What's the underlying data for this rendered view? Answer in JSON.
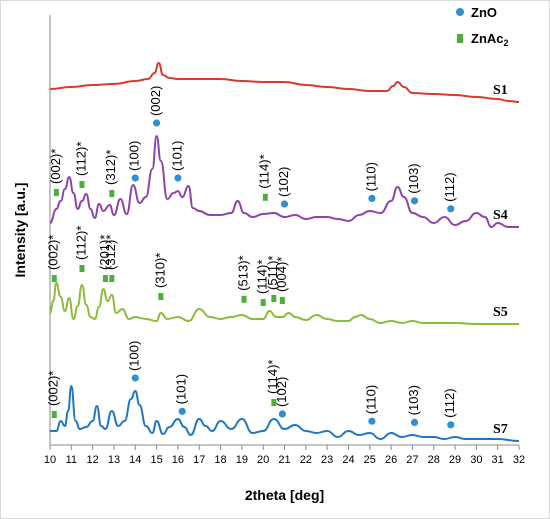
{
  "chart_data": {
    "type": "line",
    "title": "",
    "xlabel": "2theta [deg]",
    "ylabel": "Intensity [a.u.]",
    "xlim": [
      10,
      32
    ],
    "xticks": [
      "10",
      "11",
      "12",
      "13",
      "14",
      "15",
      "16",
      "17",
      "18",
      "19",
      "20",
      "21",
      "22",
      "23",
      "24",
      "25",
      "26",
      "27",
      "28",
      "29",
      "30",
      "31",
      "32"
    ],
    "grid": false,
    "legend": {
      "position": "top-right",
      "entries": [
        {
          "label": "ZnO",
          "marker": "circle",
          "color": "#2f8fd0"
        },
        {
          "label": "ZnAc",
          "subscript": "2",
          "marker": "square",
          "color": "#4caf3a"
        }
      ]
    },
    "series": [
      {
        "name": "S1",
        "color": "#d93a2e",
        "x": [
          10,
          11,
          12,
          13,
          14,
          14.6,
          14.9,
          15.1,
          15.3,
          15.6,
          16,
          17,
          18,
          19,
          20,
          21,
          22,
          23,
          24,
          25,
          25.8,
          26.1,
          26.3,
          26.6,
          27,
          28,
          29,
          30,
          31,
          31.5,
          32
        ],
        "y": [
          88,
          86,
          84,
          83,
          80,
          78,
          72,
          62,
          74,
          77,
          78,
          78,
          78,
          80,
          81,
          81,
          84,
          86,
          88,
          90,
          90,
          85,
          81,
          86,
          92,
          93,
          94,
          96,
          98,
          100,
          101
        ]
      },
      {
        "name": "S4",
        "color": "#8e44a8",
        "x": [
          10,
          10.3,
          10.5,
          10.7,
          10.9,
          11.1,
          11.3,
          11.5,
          11.7,
          11.9,
          12.1,
          12.3,
          12.5,
          12.8,
          13,
          13.3,
          13.6,
          13.9,
          14.2,
          14.5,
          14.8,
          15,
          15.2,
          15.5,
          15.8,
          16,
          16.2,
          16.5,
          16.7,
          17,
          17.5,
          18,
          18.5,
          18.8,
          19.1,
          19.5,
          20,
          20.5,
          21,
          21.5,
          22,
          22.5,
          23,
          23.5,
          24,
          24.5,
          25,
          25.5,
          26,
          26.3,
          26.6,
          27,
          27.5,
          28,
          28.5,
          29,
          29.5,
          30,
          30.4,
          30.7,
          31,
          31.5,
          32
        ],
        "y": [
          222,
          208,
          200,
          188,
          176,
          192,
          208,
          200,
          193,
          208,
          217,
          203,
          210,
          204,
          214,
          198,
          213,
          184,
          202,
          196,
          168,
          135,
          160,
          198,
          192,
          190,
          196,
          185,
          207,
          210,
          214,
          214,
          212,
          200,
          212,
          216,
          213,
          212,
          216,
          214,
          218,
          216,
          216,
          218,
          220,
          214,
          210,
          212,
          200,
          186,
          196,
          212,
          216,
          222,
          216,
          224,
          220,
          212,
          216,
          226,
          222,
          226,
          226
        ]
      },
      {
        "name": "S5",
        "color": "#8dbb3a",
        "x": [
          10,
          10.15,
          10.3,
          10.5,
          10.7,
          10.9,
          11.1,
          11.3,
          11.5,
          11.7,
          11.9,
          12.1,
          12.3,
          12.5,
          12.7,
          12.9,
          13.1,
          13.4,
          13.7,
          14,
          14.5,
          15,
          15.2,
          15.5,
          16,
          16.5,
          17,
          17.5,
          18,
          18.5,
          19,
          19.5,
          20,
          20.3,
          20.6,
          20.9,
          21.2,
          21.5,
          22,
          22.5,
          23,
          23.5,
          24,
          24.3,
          24.6,
          25,
          25.5,
          26,
          26.5,
          27,
          27.5,
          28,
          29,
          30,
          31,
          32
        ],
        "y": [
          312,
          300,
          282,
          296,
          310,
          297,
          318,
          305,
          284,
          304,
          316,
          318,
          306,
          288,
          300,
          294,
          312,
          308,
          318,
          316,
          318,
          320,
          312,
          318,
          316,
          320,
          308,
          316,
          318,
          316,
          314,
          318,
          318,
          310,
          316,
          316,
          312,
          316,
          319,
          314,
          318,
          320,
          320,
          316,
          314,
          318,
          322,
          320,
          322,
          320,
          322,
          322,
          322,
          323,
          323,
          323
        ]
      },
      {
        "name": "S7",
        "color": "#1f77c4",
        "x": [
          10,
          10.3,
          10.5,
          10.7,
          10.85,
          11,
          11.2,
          11.4,
          11.7,
          12,
          12.2,
          12.4,
          12.6,
          12.9,
          13.2,
          13.5,
          13.8,
          14,
          14.2,
          14.5,
          14.8,
          15,
          15.3,
          15.6,
          16,
          16.3,
          16.6,
          17,
          17.3,
          17.6,
          18,
          18.5,
          19,
          19.5,
          20,
          20.5,
          21,
          21.5,
          22,
          22.5,
          23,
          23.5,
          24,
          24.5,
          25,
          25.5,
          26,
          26.5,
          27,
          27.5,
          28,
          28.5,
          29,
          29.5,
          30,
          31,
          32
        ],
        "y": [
          430,
          430,
          420,
          425,
          410,
          385,
          420,
          428,
          426,
          420,
          405,
          425,
          428,
          410,
          425,
          420,
          398,
          390,
          404,
          425,
          432,
          420,
          433,
          426,
          418,
          426,
          434,
          418,
          425,
          430,
          420,
          428,
          418,
          432,
          430,
          418,
          428,
          424,
          430,
          432,
          430,
          436,
          430,
          434,
          432,
          438,
          432,
          436,
          434,
          436,
          436,
          438,
          436,
          438,
          438,
          438,
          440
        ]
      }
    ],
    "series_labels": [
      "S1",
      "S4",
      "S5",
      "S7"
    ],
    "markers": {
      "zno": [
        {
          "series": "S4",
          "x": 14.0,
          "label": "(100)"
        },
        {
          "series": "S4",
          "x": 15.0,
          "label": "(002)"
        },
        {
          "series": "S4",
          "x": 16.0,
          "label": "(101)"
        },
        {
          "series": "S4",
          "x": 21.0,
          "label": "(102)"
        },
        {
          "series": "S4",
          "x": 25.1,
          "label": "(110)"
        },
        {
          "series": "S4",
          "x": 27.1,
          "label": "(103)"
        },
        {
          "series": "S4",
          "x": 28.8,
          "label": "(112)"
        },
        {
          "series": "S7",
          "x": 14.0,
          "label": "(100)"
        },
        {
          "series": "S7",
          "x": 16.2,
          "label": "(101)"
        },
        {
          "series": "S7",
          "x": 20.9,
          "label": "(102)"
        },
        {
          "series": "S7",
          "x": 25.1,
          "label": "(110)"
        },
        {
          "series": "S7",
          "x": 27.1,
          "label": "(103)"
        },
        {
          "series": "S7",
          "x": 28.8,
          "label": "(112)"
        }
      ],
      "znac": [
        {
          "series": "S4",
          "x": 10.3,
          "label": "(002)*"
        },
        {
          "series": "S4",
          "x": 11.5,
          "label": "(112)*"
        },
        {
          "series": "S4",
          "x": 12.9,
          "label": "(312)*"
        },
        {
          "series": "S4",
          "x": 20.1,
          "label": "(114)*"
        },
        {
          "series": "S5",
          "x": 10.2,
          "label": "(002)*"
        },
        {
          "series": "S5",
          "x": 11.5,
          "label": "(112)*"
        },
        {
          "series": "S5",
          "x": 12.6,
          "label": "(201)*"
        },
        {
          "series": "S5",
          "x": 12.9,
          "label": "(312)*"
        },
        {
          "series": "S5",
          "x": 15.2,
          "label": "(310)*"
        },
        {
          "series": "S5",
          "x": 19.1,
          "label": "(513)*"
        },
        {
          "series": "S5",
          "x": 20.0,
          "label": "(114)*"
        },
        {
          "series": "S5",
          "x": 20.5,
          "label": "(511)*"
        },
        {
          "series": "S5",
          "x": 20.9,
          "label": "(004)*"
        },
        {
          "series": "S7",
          "x": 10.2,
          "label": "(002)*"
        },
        {
          "series": "S7",
          "x": 20.5,
          "label": "(114)*"
        }
      ]
    }
  }
}
